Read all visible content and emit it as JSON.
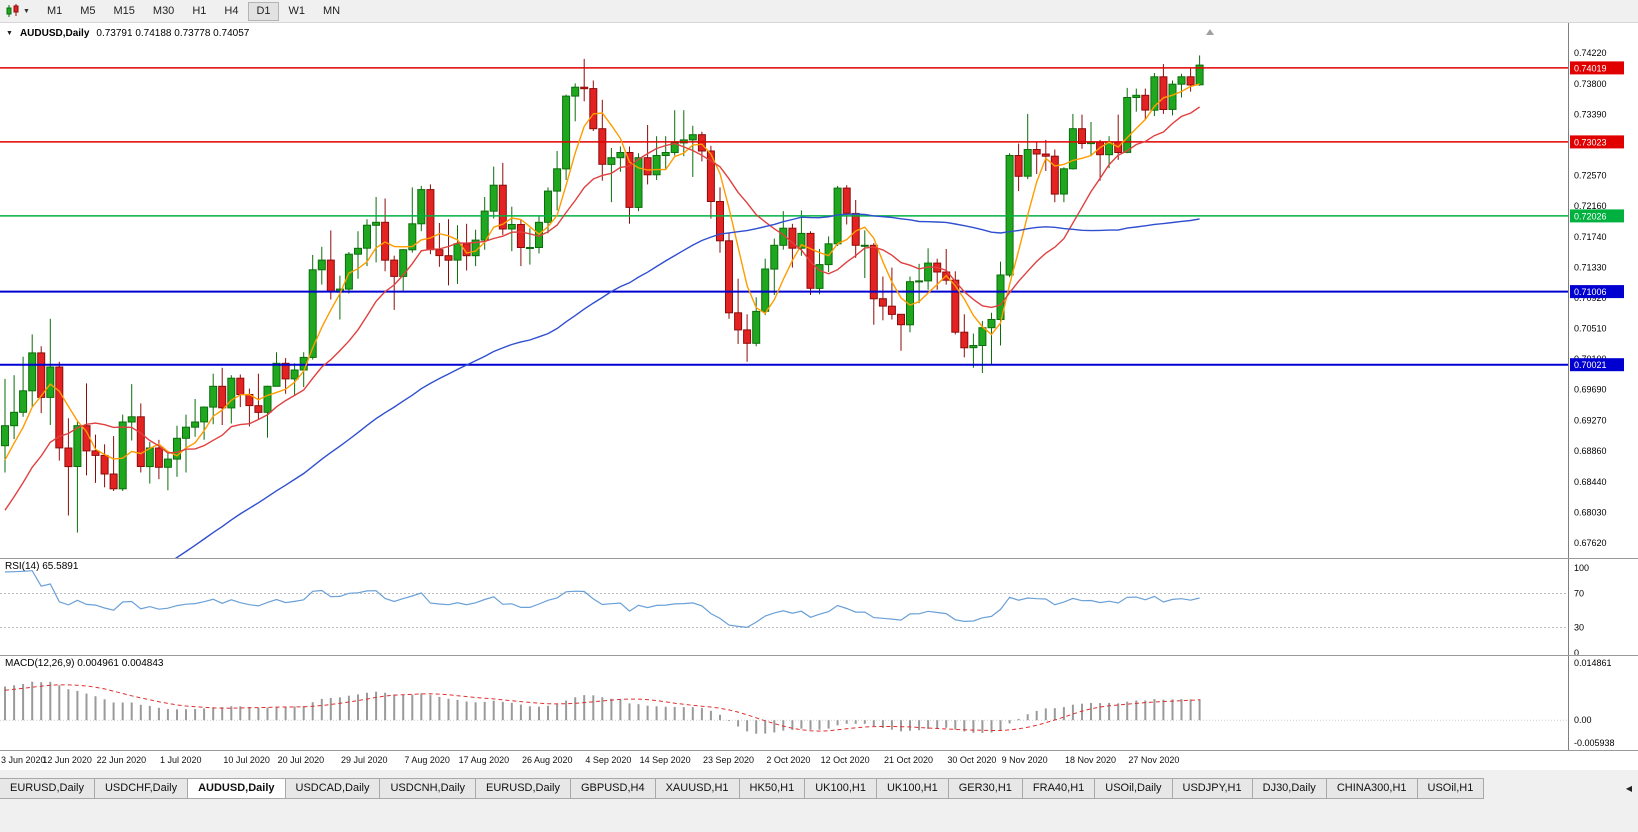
{
  "icons": {
    "title_caret": "▼",
    "toolbar_caret": "▼",
    "tab_scroll": "◀"
  },
  "toolbar": {
    "timeframes": [
      {
        "label": "M1",
        "active": false
      },
      {
        "label": "M5",
        "active": false
      },
      {
        "label": "M15",
        "active": false
      },
      {
        "label": "M30",
        "active": false
      },
      {
        "label": "H1",
        "active": false
      },
      {
        "label": "H4",
        "active": false
      },
      {
        "label": "D1",
        "active": true
      },
      {
        "label": "W1",
        "active": false
      },
      {
        "label": "MN",
        "active": false
      }
    ]
  },
  "chart_window": {
    "symbol_period": "AUDUSD,Daily",
    "ohlc": "0.73791 0.74188 0.73778 0.74057"
  },
  "chart_data": {
    "type": "candlestick",
    "title": "AUDUSD,Daily",
    "current_bar": {
      "open": 0.73791,
      "high": 0.74188,
      "low": 0.73778,
      "close": 0.74057
    },
    "y_axis": {
      "min": 0.6762,
      "max": 0.7422,
      "ticks": [
        "0.74220",
        "0.73800",
        "0.73390",
        "0.72980",
        "0.72570",
        "0.72160",
        "0.71740",
        "0.71330",
        "0.70920",
        "0.70510",
        "0.70100",
        "0.69690",
        "0.69270",
        "0.68860",
        "0.68440",
        "0.68030",
        "0.67620"
      ]
    },
    "hlines": [
      {
        "price": 0.74019,
        "label": "0.74019",
        "color": "#e00000",
        "width": 1.5
      },
      {
        "price": 0.73023,
        "label": "0.73023",
        "color": "#e00000",
        "width": 1.5
      },
      {
        "price": 0.72026,
        "label": "0.72026",
        "color": "#00b140",
        "width": 1.5
      },
      {
        "price": 0.71006,
        "label": "0.71006",
        "color": "#0000d0",
        "width": 2
      },
      {
        "price": 0.70021,
        "label": "0.70021",
        "color": "#0000d0",
        "width": 2
      }
    ],
    "x_labels": [
      {
        "i": 0,
        "t": "3 Jun 2020"
      },
      {
        "i": 7,
        "t": "12 Jun 2020"
      },
      {
        "i": 13,
        "t": "22 Jun 2020"
      },
      {
        "i": 20,
        "t": "1 Jul 2020"
      },
      {
        "i": 27,
        "t": "10 Jul 2020"
      },
      {
        "i": 33,
        "t": "20 Jul 2020"
      },
      {
        "i": 40,
        "t": "29 Jul 2020"
      },
      {
        "i": 47,
        "t": "7 Aug 2020"
      },
      {
        "i": 53,
        "t": "17 Aug 2020"
      },
      {
        "i": 60,
        "t": "26 Aug 2020"
      },
      {
        "i": 67,
        "t": "4 Sep 2020"
      },
      {
        "i": 73,
        "t": "14 Sep 2020"
      },
      {
        "i": 80,
        "t": "23 Sep 2020"
      },
      {
        "i": 87,
        "t": "2 Oct 2020"
      },
      {
        "i": 93,
        "t": "12 Oct 2020"
      },
      {
        "i": 100,
        "t": "21 Oct 2020"
      },
      {
        "i": 107,
        "t": "30 Oct 2020"
      },
      {
        "i": 113,
        "t": "9 Nov 2020"
      },
      {
        "i": 120,
        "t": "18 Nov 2020"
      },
      {
        "i": 127,
        "t": "27 Nov 2020"
      }
    ],
    "colors": {
      "bull": "#1fa81f",
      "bull_border": "#0a6e0a",
      "bear": "#e32222",
      "bear_border": "#8e0b0b"
    },
    "candles": [
      [
        0.6893,
        0.6983,
        0.6857,
        0.692
      ],
      [
        0.692,
        0.6988,
        0.6902,
        0.6938
      ],
      [
        0.6938,
        0.7013,
        0.6932,
        0.6967
      ],
      [
        0.6967,
        0.7043,
        0.6946,
        0.7018
      ],
      [
        0.7018,
        0.7027,
        0.6937,
        0.6958
      ],
      [
        0.6958,
        0.7064,
        0.6921,
        0.6999
      ],
      [
        0.6999,
        0.7006,
        0.6873,
        0.689
      ],
      [
        0.689,
        0.693,
        0.6799,
        0.6865
      ],
      [
        0.6865,
        0.6925,
        0.6776,
        0.692
      ],
      [
        0.692,
        0.6977,
        0.6853,
        0.6886
      ],
      [
        0.6886,
        0.6908,
        0.6843,
        0.688
      ],
      [
        0.688,
        0.6895,
        0.6837,
        0.6855
      ],
      [
        0.6855,
        0.6906,
        0.6832,
        0.6835
      ],
      [
        0.6835,
        0.6935,
        0.6832,
        0.6925
      ],
      [
        0.6925,
        0.6976,
        0.69,
        0.6932
      ],
      [
        0.6932,
        0.695,
        0.6857,
        0.6865
      ],
      [
        0.6865,
        0.6898,
        0.6842,
        0.689
      ],
      [
        0.689,
        0.6901,
        0.6848,
        0.6864
      ],
      [
        0.6864,
        0.6886,
        0.6833,
        0.6875
      ],
      [
        0.6875,
        0.692,
        0.6851,
        0.6903
      ],
      [
        0.6903,
        0.6935,
        0.6857,
        0.6918
      ],
      [
        0.6918,
        0.6956,
        0.6905,
        0.6925
      ],
      [
        0.6925,
        0.6946,
        0.6901,
        0.6945
      ],
      [
        0.6945,
        0.699,
        0.6922,
        0.6973
      ],
      [
        0.6973,
        0.6998,
        0.6921,
        0.6944
      ],
      [
        0.6944,
        0.6988,
        0.6923,
        0.6984
      ],
      [
        0.6984,
        0.6989,
        0.6945,
        0.6962
      ],
      [
        0.6962,
        0.697,
        0.6919,
        0.6947
      ],
      [
        0.6947,
        0.699,
        0.6929,
        0.6938
      ],
      [
        0.6938,
        0.6974,
        0.6904,
        0.6973
      ],
      [
        0.6973,
        0.7019,
        0.6973,
        0.7004
      ],
      [
        0.7004,
        0.7011,
        0.6963,
        0.6983
      ],
      [
        0.6983,
        0.7004,
        0.696,
        0.6995
      ],
      [
        0.6995,
        0.7019,
        0.6972,
        0.7012
      ],
      [
        0.7012,
        0.715,
        0.7009,
        0.713
      ],
      [
        0.713,
        0.7161,
        0.711,
        0.7143
      ],
      [
        0.7143,
        0.7183,
        0.709,
        0.71
      ],
      [
        0.71,
        0.7122,
        0.7063,
        0.7104
      ],
      [
        0.7104,
        0.7154,
        0.7098,
        0.7151
      ],
      [
        0.7151,
        0.7182,
        0.7118,
        0.7159
      ],
      [
        0.7159,
        0.7198,
        0.7135,
        0.719
      ],
      [
        0.719,
        0.7228,
        0.714,
        0.7194
      ],
      [
        0.7194,
        0.7226,
        0.7128,
        0.7143
      ],
      [
        0.7143,
        0.7149,
        0.7076,
        0.7121
      ],
      [
        0.7121,
        0.7158,
        0.7102,
        0.7157
      ],
      [
        0.7157,
        0.7241,
        0.7153,
        0.7192
      ],
      [
        0.7192,
        0.7243,
        0.7182,
        0.7238
      ],
      [
        0.7238,
        0.7245,
        0.7151,
        0.7157
      ],
      [
        0.7157,
        0.7193,
        0.7134,
        0.7149
      ],
      [
        0.7149,
        0.7198,
        0.7109,
        0.7143
      ],
      [
        0.7143,
        0.719,
        0.7111,
        0.7165
      ],
      [
        0.7165,
        0.7192,
        0.7129,
        0.7149
      ],
      [
        0.7149,
        0.7184,
        0.7135,
        0.717
      ],
      [
        0.717,
        0.7228,
        0.7157,
        0.7209
      ],
      [
        0.7209,
        0.7269,
        0.7199,
        0.7244
      ],
      [
        0.7244,
        0.7274,
        0.7177,
        0.7185
      ],
      [
        0.7185,
        0.7215,
        0.7155,
        0.7191
      ],
      [
        0.7191,
        0.7197,
        0.7135,
        0.716
      ],
      [
        0.716,
        0.7186,
        0.7137,
        0.716
      ],
      [
        0.716,
        0.7203,
        0.7152,
        0.7194
      ],
      [
        0.7194,
        0.7241,
        0.7179,
        0.7236
      ],
      [
        0.7236,
        0.729,
        0.721,
        0.7266
      ],
      [
        0.7266,
        0.7366,
        0.7251,
        0.7364
      ],
      [
        0.7364,
        0.7381,
        0.733,
        0.7376
      ],
      [
        0.7376,
        0.7414,
        0.7357,
        0.7374
      ],
      [
        0.7374,
        0.7385,
        0.7317,
        0.732
      ],
      [
        0.732,
        0.7359,
        0.725,
        0.7272
      ],
      [
        0.7272,
        0.7294,
        0.7221,
        0.7281
      ],
      [
        0.7281,
        0.7296,
        0.7262,
        0.7288
      ],
      [
        0.7288,
        0.7296,
        0.7192,
        0.7214
      ],
      [
        0.7214,
        0.7287,
        0.7209,
        0.7281
      ],
      [
        0.7281,
        0.7325,
        0.7245,
        0.7258
      ],
      [
        0.7258,
        0.731,
        0.7251,
        0.7284
      ],
      [
        0.7284,
        0.731,
        0.7265,
        0.7288
      ],
      [
        0.7288,
        0.7345,
        0.7284,
        0.7301
      ],
      [
        0.7301,
        0.7345,
        0.7283,
        0.7305
      ],
      [
        0.7305,
        0.7324,
        0.7255,
        0.7312
      ],
      [
        0.7312,
        0.7316,
        0.7276,
        0.729
      ],
      [
        0.729,
        0.7297,
        0.7199,
        0.7222
      ],
      [
        0.7222,
        0.7241,
        0.7153,
        0.7169
      ],
      [
        0.7169,
        0.718,
        0.7064,
        0.7072
      ],
      [
        0.7072,
        0.7118,
        0.703,
        0.7049
      ],
      [
        0.7049,
        0.707,
        0.7006,
        0.7031
      ],
      [
        0.7031,
        0.7093,
        0.7027,
        0.7074
      ],
      [
        0.7074,
        0.7145,
        0.7069,
        0.7131
      ],
      [
        0.7131,
        0.7172,
        0.7096,
        0.7163
      ],
      [
        0.7163,
        0.7209,
        0.7157,
        0.7186
      ],
      [
        0.7186,
        0.7192,
        0.7133,
        0.7159
      ],
      [
        0.7159,
        0.721,
        0.7149,
        0.7179
      ],
      [
        0.7179,
        0.7182,
        0.7096,
        0.7105
      ],
      [
        0.7105,
        0.7158,
        0.7097,
        0.7137
      ],
      [
        0.7137,
        0.7175,
        0.7127,
        0.7165
      ],
      [
        0.7165,
        0.7243,
        0.7162,
        0.724
      ],
      [
        0.724,
        0.7244,
        0.7191,
        0.7206
      ],
      [
        0.7206,
        0.7224,
        0.7146,
        0.7163
      ],
      [
        0.7163,
        0.7183,
        0.7119,
        0.7163
      ],
      [
        0.7163,
        0.7166,
        0.7056,
        0.7091
      ],
      [
        0.7091,
        0.7121,
        0.7062,
        0.7081
      ],
      [
        0.7081,
        0.7133,
        0.7063,
        0.707
      ],
      [
        0.707,
        0.707,
        0.7021,
        0.7056
      ],
      [
        0.7056,
        0.7121,
        0.7046,
        0.7114
      ],
      [
        0.7114,
        0.7138,
        0.7085,
        0.7115
      ],
      [
        0.7115,
        0.7159,
        0.7103,
        0.7139
      ],
      [
        0.7139,
        0.7145,
        0.7103,
        0.7127
      ],
      [
        0.7127,
        0.7158,
        0.711,
        0.7116
      ],
      [
        0.7116,
        0.7128,
        0.7043,
        0.7046
      ],
      [
        0.7046,
        0.707,
        0.7012,
        0.7025
      ],
      [
        0.7025,
        0.7044,
        0.6998,
        0.7028
      ],
      [
        0.7028,
        0.7061,
        0.6991,
        0.7052
      ],
      [
        0.7052,
        0.7072,
        0.7002,
        0.7063
      ],
      [
        0.7063,
        0.7141,
        0.7028,
        0.7123
      ],
      [
        0.7123,
        0.7287,
        0.712,
        0.7284
      ],
      [
        0.7284,
        0.73,
        0.7236,
        0.7256
      ],
      [
        0.7256,
        0.734,
        0.7252,
        0.7292
      ],
      [
        0.7292,
        0.7302,
        0.7259,
        0.7286
      ],
      [
        0.7286,
        0.7305,
        0.7263,
        0.7283
      ],
      [
        0.7283,
        0.7292,
        0.7221,
        0.7232
      ],
      [
        0.7232,
        0.7268,
        0.7221,
        0.7266
      ],
      [
        0.7266,
        0.734,
        0.7265,
        0.732
      ],
      [
        0.732,
        0.7339,
        0.7293,
        0.73
      ],
      [
        0.73,
        0.7329,
        0.7283,
        0.7302
      ],
      [
        0.7302,
        0.7305,
        0.725,
        0.7285
      ],
      [
        0.7285,
        0.731,
        0.7267,
        0.7302
      ],
      [
        0.7302,
        0.7339,
        0.7278,
        0.7288
      ],
      [
        0.7288,
        0.7375,
        0.7287,
        0.7362
      ],
      [
        0.7362,
        0.7374,
        0.7343,
        0.7365
      ],
      [
        0.7365,
        0.7374,
        0.7332,
        0.7345
      ],
      [
        0.7345,
        0.7395,
        0.7337,
        0.739
      ],
      [
        0.739,
        0.7407,
        0.734,
        0.7346
      ],
      [
        0.7346,
        0.7385,
        0.7338,
        0.738
      ],
      [
        0.738,
        0.7394,
        0.7362,
        0.739
      ],
      [
        0.739,
        0.7401,
        0.737,
        0.7379
      ],
      [
        0.73791,
        0.74188,
        0.73778,
        0.74057
      ]
    ],
    "ma_seed": {
      "start": 0.64,
      "range": 0.049,
      "count": 55,
      "pow": 2,
      "wobble": 0.0012,
      "wobble_freq": 1.7
    },
    "ma": {
      "fast": {
        "period": 5,
        "color": "#ff9c00"
      },
      "mid": {
        "period": 13,
        "color": "#e04040"
      },
      "slow": {
        "period": 55,
        "color": "#2f4fd0"
      }
    },
    "rsi": {
      "label": "RSI(14) 65.5891",
      "period": 14,
      "color": "#6aa0d8",
      "levels": [
        {
          "v": 100,
          "t": "100"
        },
        {
          "v": 70,
          "t": "70"
        },
        {
          "v": 30,
          "t": "30"
        },
        {
          "v": 0,
          "t": "0"
        }
      ],
      "dashed_levels": [
        70,
        30
      ]
    },
    "macd": {
      "label": "MACD(12,26,9) 0.004961 0.004843",
      "fast": 12,
      "slow": 26,
      "signal_period": 9,
      "hist_color": "#9a9a9a",
      "signal_color": "#e03030",
      "range": {
        "top": 0.014861,
        "bottom": -0.005938
      },
      "axis": [
        {
          "v": 0.014861,
          "t": "0.014861"
        },
        {
          "v": 0,
          "t": "0.00"
        },
        {
          "v": -0.005938,
          "t": "-0.005938"
        }
      ]
    }
  },
  "tabs": {
    "items": [
      {
        "label": "EURUSD,Daily",
        "active": false
      },
      {
        "label": "USDCHF,Daily",
        "active": false
      },
      {
        "label": "AUDUSD,Daily",
        "active": true
      },
      {
        "label": "USDCAD,Daily",
        "active": false
      },
      {
        "label": "USDCNH,Daily",
        "active": false
      },
      {
        "label": "EURUSD,Daily",
        "active": false
      },
      {
        "label": "GBPUSD,H4",
        "active": false
      },
      {
        "label": "XAUUSD,H1",
        "active": false
      },
      {
        "label": "HK50,H1",
        "active": false
      },
      {
        "label": "UK100,H1",
        "active": false
      },
      {
        "label": "UK100,H1",
        "active": false
      },
      {
        "label": "GER30,H1",
        "active": false
      },
      {
        "label": "FRA40,H1",
        "active": false
      },
      {
        "label": "USOil,Daily",
        "active": false
      },
      {
        "label": "USDJPY,H1",
        "active": false
      },
      {
        "label": "DJ30,Daily",
        "active": false
      },
      {
        "label": "CHINA300,H1",
        "active": false
      },
      {
        "label": "USOil,H1",
        "active": false
      }
    ]
  }
}
